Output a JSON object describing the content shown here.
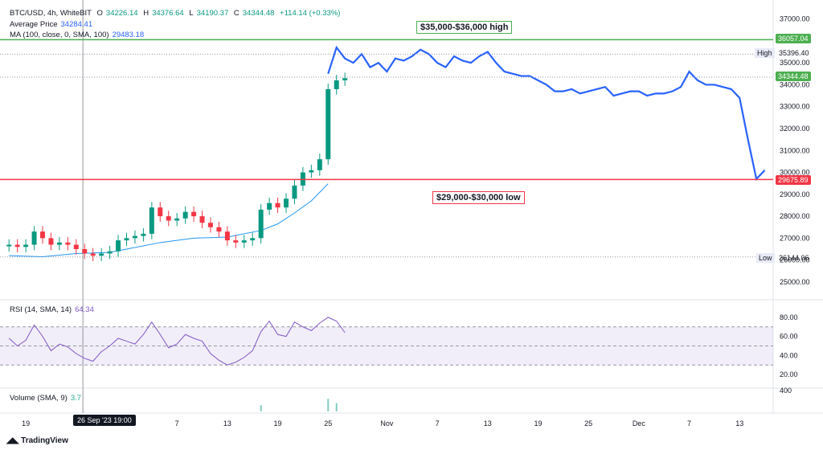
{
  "header": {
    "symbol": "BTC/USD, 4h, WhiteBIT",
    "ohlc": {
      "o_label": "O",
      "o": "34226.14",
      "h_label": "H",
      "h": "34376.64",
      "l_label": "L",
      "l": "34190.37",
      "c_label": "C",
      "c": "34344.48",
      "change": "+114.14 (+0.33%)"
    },
    "avg_label": "Average Price",
    "avg_value": "34284.41",
    "ma_label": "MA (100, close, 0, SMA, 100)",
    "ma_value": "29483.18"
  },
  "rsi": {
    "label": "RSI (14, SMA, 14)",
    "value": "64.34"
  },
  "volume": {
    "label": "Volume (SMA, 9)",
    "value": "3.7"
  },
  "price_tags": {
    "top_line": "36057.04",
    "high_word": "High",
    "high": "35396.40",
    "last": "34344.48",
    "bottom_line": "29675.89",
    "low_word": "Low",
    "low": "26144.06"
  },
  "annotations": {
    "high_zone": "$35,000-$36,000 high",
    "low_zone": "$29,000-$30,000 low"
  },
  "crosshair_label": "26 Sep '23   19:00",
  "brand": "TradingView",
  "colors": {
    "up": "#089981",
    "down": "#f23645",
    "line": "#2962ff",
    "ma": "#2196f3",
    "green_level": "#4caf50",
    "red_level": "#f23645",
    "rsi": "#7e57c2"
  },
  "chart_data": {
    "type": "line",
    "title": "BTC/USD, 4h, WhiteBIT",
    "y_ticks": [
      25000,
      26000,
      27000,
      28000,
      29000,
      30000,
      31000,
      32000,
      33000,
      34000,
      35000,
      36000,
      37000
    ],
    "ylim": [
      24300,
      37500
    ],
    "x_ticks": [
      "19",
      "Oct",
      "7",
      "13",
      "19",
      "25",
      "Nov",
      "7",
      "13",
      "19",
      "25",
      "Dec",
      "7",
      "13"
    ],
    "x_tick_days": [
      -12,
      0,
      6,
      12,
      18,
      24,
      31,
      37,
      43,
      49,
      55,
      61,
      67,
      73
    ],
    "xlim_days": [
      -14.5,
      77
    ],
    "candles": {
      "name": "BTC/USD 4h",
      "days": [
        -14,
        -13,
        -12,
        -11,
        -10,
        -9,
        -8,
        -7,
        -6,
        -5,
        -4,
        -3,
        -2,
        -1,
        0,
        1,
        2,
        3,
        4,
        5,
        6,
        7,
        8,
        9,
        10,
        11,
        12,
        13,
        14,
        15,
        16,
        17,
        18,
        19,
        20,
        21,
        22,
        23,
        24,
        25,
        26
      ],
      "values": [
        26700,
        26600,
        26700,
        27300,
        27000,
        26700,
        26800,
        26700,
        26500,
        26300,
        26200,
        26300,
        26400,
        26900,
        27000,
        27100,
        27200,
        28400,
        28000,
        27800,
        27900,
        28200,
        28000,
        27700,
        27500,
        27300,
        26900,
        26800,
        26900,
        27000,
        28300,
        28600,
        28400,
        28800,
        29400,
        30000,
        30100,
        30600,
        33800,
        34200,
        34300
      ]
    },
    "line_series": {
      "name": "BTC/USD price",
      "days": [
        24,
        25,
        26,
        27,
        28,
        29,
        30,
        31,
        32,
        33,
        34,
        35,
        36,
        37,
        38,
        39,
        40,
        41,
        42,
        43,
        44,
        45,
        46,
        47,
        48,
        49,
        50,
        51,
        52,
        53,
        54,
        55,
        56,
        57,
        58,
        59,
        60,
        61,
        62,
        63,
        64,
        65,
        66,
        67,
        68,
        69,
        70,
        71,
        72,
        73,
        74,
        75,
        76
      ],
      "values": [
        34500,
        35700,
        35200,
        35000,
        35400,
        34800,
        35000,
        34600,
        35200,
        35100,
        35300,
        35600,
        35400,
        35000,
        34800,
        35300,
        35100,
        35000,
        35300,
        35500,
        35000,
        34600,
        34500,
        34400,
        34400,
        34200,
        34000,
        33700,
        33700,
        33800,
        33600,
        33700,
        33800,
        33900,
        33500,
        33600,
        33700,
        33700,
        33500,
        33600,
        33600,
        33700,
        33900,
        34600,
        34200,
        34000,
        34000,
        33900,
        33800,
        33400,
        31500,
        29700,
        30100
      ]
    },
    "ma_series": {
      "name": "MA (100, close, 0, SMA, 100)",
      "days": [
        -14,
        -10,
        -6,
        -2,
        0,
        4,
        8,
        12,
        16,
        18,
        20,
        22,
        24
      ],
      "values": [
        26200,
        26150,
        26300,
        26350,
        26500,
        26800,
        27000,
        27050,
        27350,
        27650,
        28150,
        28700,
        29483
      ]
    },
    "levels": [
      36057.04,
      35396.4,
      34344.48,
      29675.89,
      26144.06
    ],
    "rsi": {
      "name": "RSI (14, SMA, 14)",
      "y_ticks": [
        20,
        40,
        60,
        80
      ],
      "band": [
        30,
        70
      ],
      "days": [
        -14,
        -13,
        -12,
        -11,
        -10,
        -9,
        -8,
        -7,
        -6,
        -5,
        -4,
        -3,
        -2,
        -1,
        0,
        1,
        2,
        3,
        4,
        5,
        6,
        7,
        8,
        9,
        10,
        11,
        12,
        13,
        14,
        15,
        16,
        17,
        18,
        19,
        20,
        21,
        22,
        23,
        24,
        25,
        26
      ],
      "values": [
        58,
        50,
        56,
        72,
        60,
        45,
        52,
        49,
        42,
        37,
        34,
        44,
        50,
        58,
        55,
        52,
        62,
        75,
        62,
        48,
        52,
        62,
        58,
        55,
        42,
        35,
        30,
        33,
        38,
        45,
        65,
        76,
        62,
        60,
        75,
        70,
        66,
        74,
        80,
        76,
        64
      ]
    },
    "volume": {
      "name": "Volume (SMA, 9)",
      "y_ticks": [
        400
      ],
      "days": [
        16,
        24,
        25
      ],
      "values": [
        120,
        240,
        160
      ]
    }
  }
}
